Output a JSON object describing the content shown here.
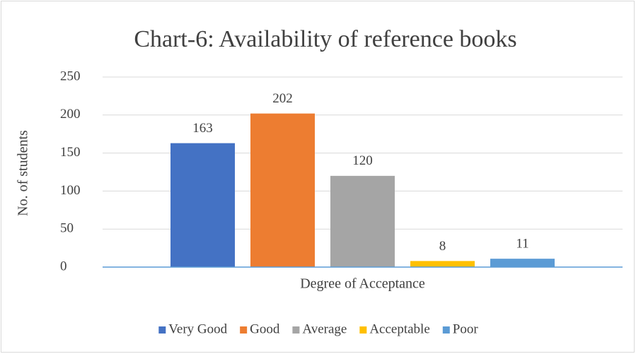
{
  "chart_data": {
    "type": "bar",
    "title": "Chart-6: Availability of reference books",
    "ylabel": "No. of students",
    "categories": [
      "Degree of Acceptance"
    ],
    "series": [
      {
        "name": "Very Good",
        "color": "#4472c4",
        "values": [
          163
        ]
      },
      {
        "name": "Good",
        "color": "#ed7d31",
        "values": [
          202
        ]
      },
      {
        "name": "Average",
        "color": "#a5a5a5",
        "values": [
          120
        ]
      },
      {
        "name": "Acceptable",
        "color": "#ffc000",
        "values": [
          8
        ]
      },
      {
        "name": "Poor",
        "color": "#5b9bd5",
        "values": [
          11
        ]
      }
    ],
    "ylim": [
      0,
      250
    ],
    "yticks": [
      0,
      50,
      100,
      150,
      200,
      250
    ],
    "grid": true,
    "legend": "bottom"
  }
}
